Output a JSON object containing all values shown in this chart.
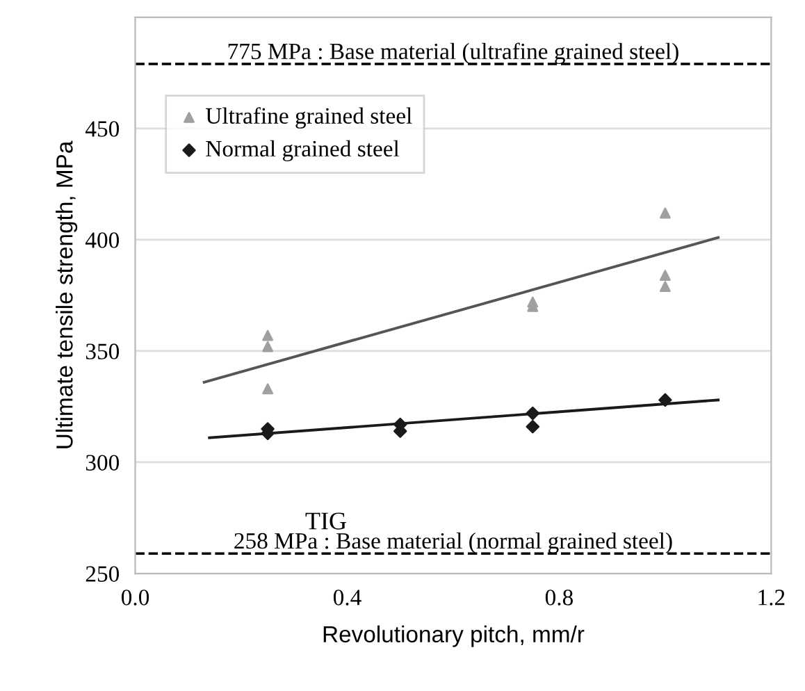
{
  "chart_data": {
    "type": "scatter",
    "xlabel": "Revolutionary pitch, mm/r",
    "ylabel": "Ultimate tensile strength, MPa",
    "xlim": [
      0,
      1.2
    ],
    "xticks": [
      {
        "value": 0,
        "label": "0.0"
      },
      0.4,
      0.8,
      1.2
    ],
    "ylim": [
      250,
      500
    ],
    "yticks": [
      250,
      300,
      350,
      400,
      450
    ],
    "grid": "y",
    "legend": "top left",
    "series": [
      {
        "name": "Ultrafine grained steel",
        "marker": "triangle",
        "color": "#a0a0a0",
        "x": [
          0.25,
          0.25,
          0.25,
          0.75,
          0.75,
          1.0,
          1.0,
          1.0
        ],
        "values": [
          357,
          352,
          333,
          370,
          372,
          412,
          384,
          379
        ]
      },
      {
        "name": "Normal grained steel",
        "marker": "diamond",
        "color": "#1a1a1a",
        "x": [
          0.25,
          0.25,
          0.5,
          0.5,
          0.75,
          0.75,
          1.0
        ],
        "values": [
          313,
          315,
          314,
          317,
          316,
          322,
          328
        ]
      },
      {
        "type": "line",
        "color": "#555555",
        "x": [
          0.13,
          1.1
        ],
        "values": [
          336,
          401
        ]
      },
      {
        "type": "line",
        "color": "#1a1a1a",
        "x": [
          0.14,
          1.1
        ],
        "values": [
          311,
          328
        ]
      }
    ],
    "ref_lines": [
      {
        "axis": "y",
        "value": 479,
        "label": "775 MPa : Base material (ultrafine grained steel)",
        "color": "#000000",
        "line_style": "dashed"
      },
      {
        "axis": "y",
        "value": 259,
        "label": "258 MPa : Base material (normal grained steel)",
        "color": "#000000",
        "line_style": "dashed"
      }
    ],
    "annotations": [
      "TIG"
    ]
  }
}
